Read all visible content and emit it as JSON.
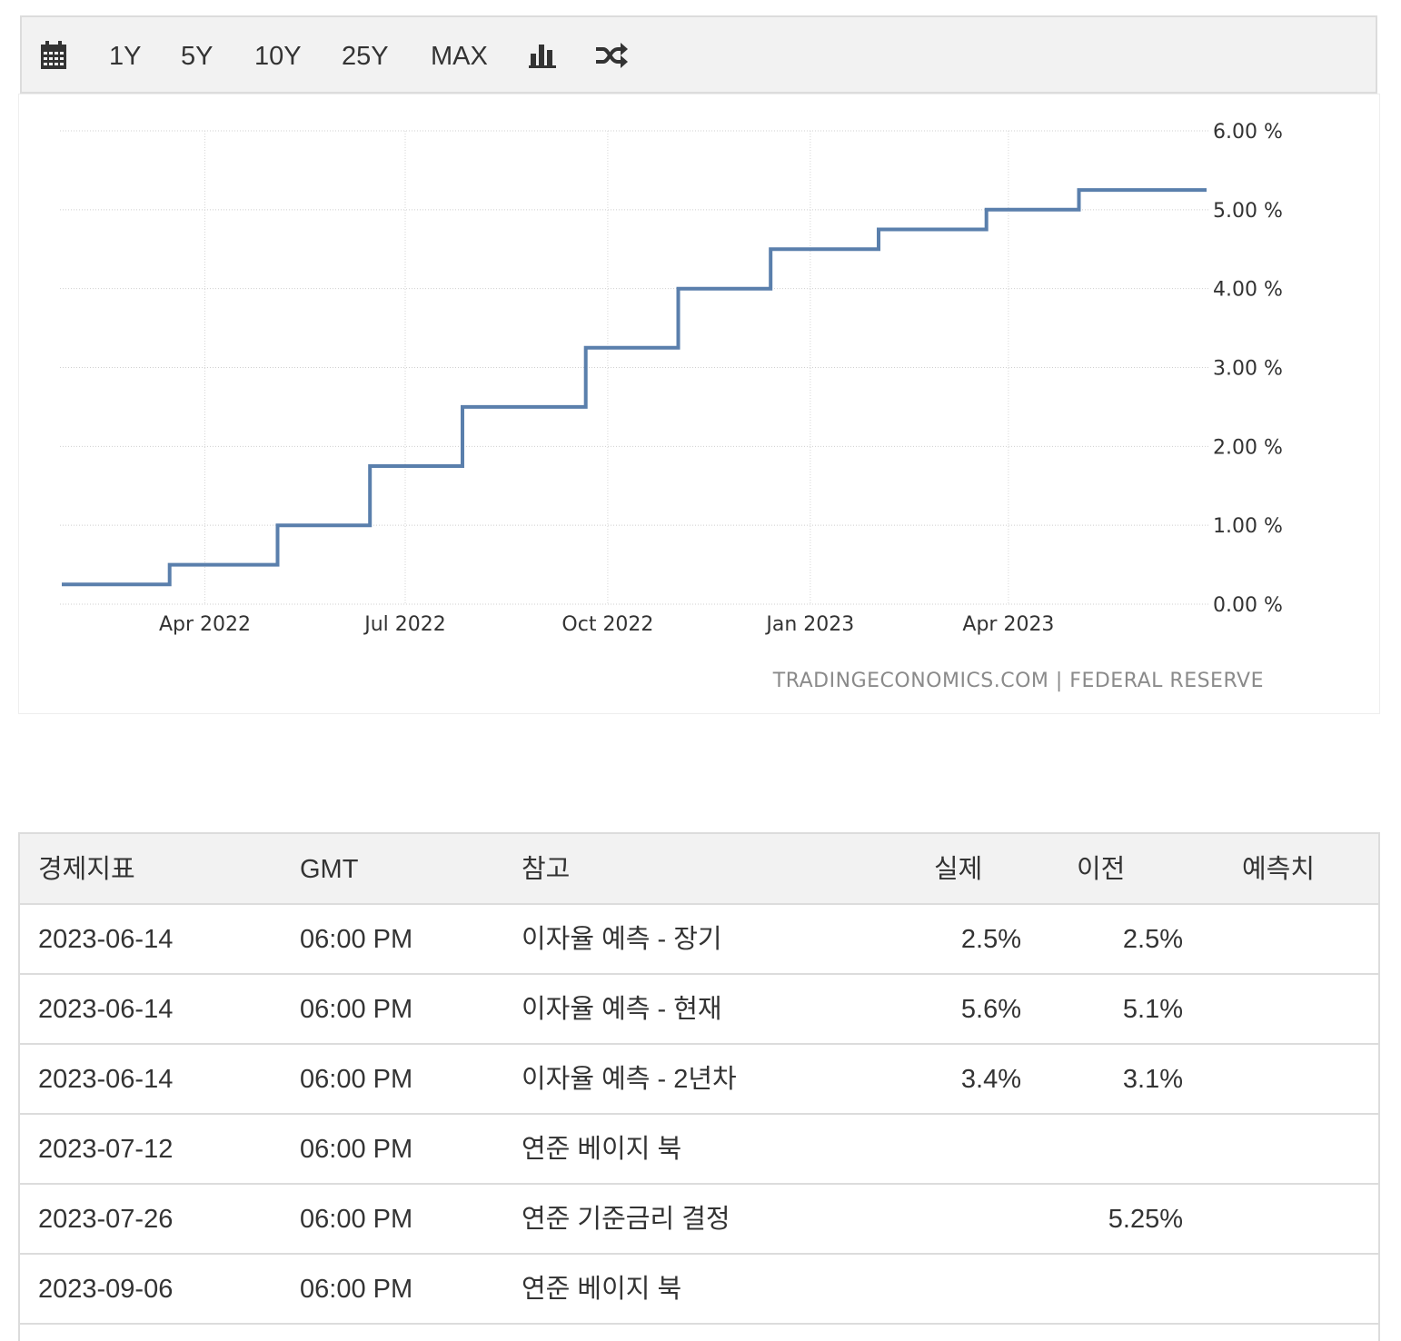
{
  "toolbar": {
    "calendar_icon": "calendar-icon",
    "ranges": [
      "1Y",
      "5Y",
      "10Y",
      "25Y",
      "MAX"
    ],
    "bar_chart_icon": "bar-chart-icon",
    "shuffle_icon": "shuffle-icon"
  },
  "chart_data": {
    "type": "line",
    "line_color": "#5a7fac",
    "ylim": [
      0,
      6
    ],
    "y_ticks": [
      "0.00 %",
      "1.00 %",
      "2.00 %",
      "3.00 %",
      "4.00 %",
      "5.00 %",
      "6.00 %"
    ],
    "x_ticks": [
      "Apr 2022",
      "Jul 2022",
      "Oct 2022",
      "Jan 2023",
      "Apr 2023"
    ],
    "x_tick_dates": [
      "2022-04-01",
      "2022-07-01",
      "2022-10-01",
      "2023-01-01",
      "2023-04-01"
    ],
    "xlim": [
      "2022-01-26",
      "2023-06-30"
    ],
    "step": true,
    "grid": true,
    "series": [
      {
        "x": [
          "2022-01-26",
          "2022-03-16",
          "2022-05-04",
          "2022-06-15",
          "2022-07-27",
          "2022-09-21",
          "2022-11-02",
          "2022-12-14",
          "2023-02-01",
          "2023-03-22",
          "2023-05-03",
          "2023-06-30"
        ],
        "values": [
          0.25,
          0.5,
          1.0,
          1.75,
          2.5,
          3.25,
          4.0,
          4.5,
          4.75,
          5.0,
          5.25,
          5.25
        ]
      }
    ],
    "credit": "TRADINGECONOMICS.COM | FEDERAL RESERVE"
  },
  "table": {
    "headers": [
      "경제지표",
      "GMT",
      "참고",
      "실제",
      "이전",
      "예측치"
    ],
    "rows": [
      {
        "date": "2023-06-14",
        "time": "06:00 PM",
        "event": "이자율 예측 - 장기",
        "actual": "2.5%",
        "previous": "2.5%",
        "forecast": ""
      },
      {
        "date": "2023-06-14",
        "time": "06:00 PM",
        "event": "이자율 예측 - 현재",
        "actual": "5.6%",
        "previous": "5.1%",
        "forecast": ""
      },
      {
        "date": "2023-06-14",
        "time": "06:00 PM",
        "event": "이자율 예측 - 2년차",
        "actual": "3.4%",
        "previous": "3.1%",
        "forecast": ""
      },
      {
        "date": "2023-07-12",
        "time": "06:00 PM",
        "event": "연준 베이지 북",
        "actual": "",
        "previous": "",
        "forecast": ""
      },
      {
        "date": "2023-07-26",
        "time": "06:00 PM",
        "event": "연준 기준금리 결정",
        "actual": "",
        "previous": "5.25%",
        "forecast": ""
      },
      {
        "date": "2023-09-06",
        "time": "06:00 PM",
        "event": "연준 베이지 북",
        "actual": "",
        "previous": "",
        "forecast": ""
      }
    ]
  }
}
